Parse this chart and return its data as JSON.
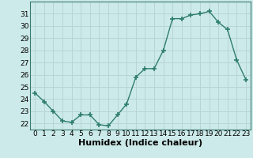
{
  "x": [
    0,
    1,
    2,
    3,
    4,
    5,
    6,
    7,
    8,
    9,
    10,
    11,
    12,
    13,
    14,
    15,
    16,
    17,
    18,
    19,
    20,
    21,
    22,
    23
  ],
  "y": [
    24.5,
    23.8,
    23.0,
    22.2,
    22.1,
    22.7,
    22.7,
    21.9,
    21.8,
    22.7,
    23.6,
    25.8,
    26.5,
    26.5,
    28.0,
    30.6,
    30.6,
    30.9,
    31.0,
    31.2,
    30.3,
    29.7,
    27.2,
    25.6
  ],
  "line_color": "#2e7d6e",
  "bg_color": "#cdeaea",
  "grid_color": "#b8d4d4",
  "xlabel": "Humidex (Indice chaleur)",
  "ylim": [
    21.5,
    32.0
  ],
  "xlim": [
    -0.5,
    23.5
  ],
  "yticks": [
    22,
    23,
    24,
    25,
    26,
    27,
    28,
    29,
    30,
    31
  ],
  "xticks": [
    0,
    1,
    2,
    3,
    4,
    5,
    6,
    7,
    8,
    9,
    10,
    11,
    12,
    13,
    14,
    15,
    16,
    17,
    18,
    19,
    20,
    21,
    22,
    23
  ],
  "marker": "+",
  "marker_size": 4,
  "line_width": 1.0,
  "xlabel_fontsize": 8,
  "tick_fontsize": 6.5
}
